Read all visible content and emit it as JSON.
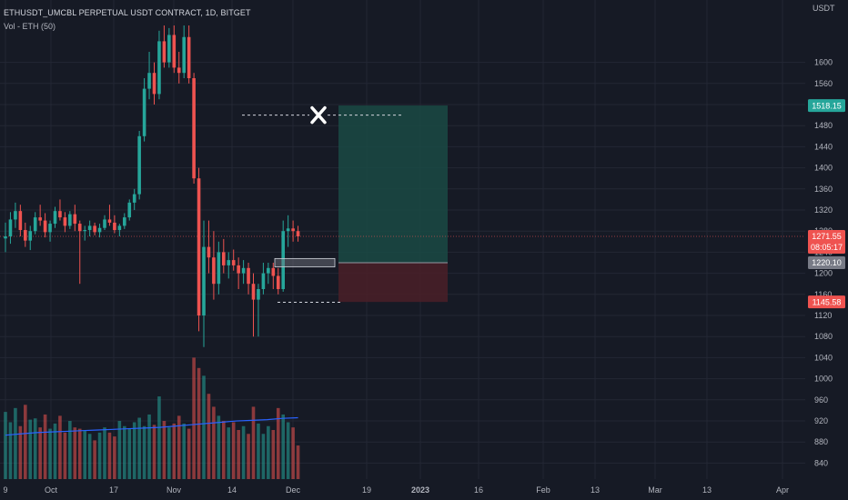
{
  "header": {
    "title": "ETHUSDT_UMCBL PERPETUAL USDT CONTRACT, 1D, BITGET",
    "indicator": "Vol - ETH (50)"
  },
  "colors": {
    "background": "#161a25",
    "up": "#26a69a",
    "down": "#ef5350",
    "grid": "#232734",
    "axis_text": "#b2b5be",
    "volume_ma": "#2962ff",
    "profit_zone": "#1a4a44",
    "loss_zone": "#4a2028"
  },
  "chart_data": {
    "type": "candlestick",
    "symbol": "ETHUSDT_UMCBL PERPETUAL USDT CONTRACT",
    "timeframe": "1D",
    "exchange": "BITGET",
    "y_axis": {
      "unit": "USDT",
      "range": [
        820,
        1670
      ],
      "ticks": [
        1600,
        1560,
        1520,
        1480,
        1440,
        1400,
        1360,
        1320,
        1280,
        1240,
        1200,
        1160,
        1120,
        1080,
        1040,
        1000,
        960,
        920,
        880,
        840
      ]
    },
    "x_axis": {
      "ticks": [
        "9",
        "Oct",
        "17",
        "Nov",
        "14",
        "Dec",
        "19",
        "2023",
        "16",
        "Feb",
        "13",
        "Mar",
        "13",
        "Apr"
      ]
    },
    "candles": [
      [
        1266,
        1296,
        1240,
        1270,
        104
      ],
      [
        1270,
        1316,
        1256,
        1302,
        88
      ],
      [
        1302,
        1334,
        1286,
        1318,
        110
      ],
      [
        1318,
        1330,
        1270,
        1282,
        82
      ],
      [
        1282,
        1296,
        1250,
        1262,
        115
      ],
      [
        1262,
        1290,
        1244,
        1280,
        92
      ],
      [
        1280,
        1316,
        1274,
        1306,
        94
      ],
      [
        1306,
        1330,
        1290,
        1300,
        80
      ],
      [
        1300,
        1314,
        1268,
        1278,
        100
      ],
      [
        1278,
        1300,
        1260,
        1294,
        78
      ],
      [
        1294,
        1326,
        1286,
        1318,
        86
      ],
      [
        1318,
        1340,
        1300,
        1306,
        98
      ],
      [
        1306,
        1316,
        1278,
        1290,
        72
      ],
      [
        1290,
        1318,
        1284,
        1312,
        90
      ],
      [
        1312,
        1330,
        1280,
        1294,
        80
      ],
      [
        1294,
        1300,
        1180,
        1280,
        78
      ],
      [
        1280,
        1290,
        1262,
        1282,
        75
      ],
      [
        1282,
        1300,
        1270,
        1290,
        70
      ],
      [
        1290,
        1296,
        1272,
        1278,
        60
      ],
      [
        1278,
        1294,
        1268,
        1286,
        72
      ],
      [
        1286,
        1310,
        1282,
        1302,
        80
      ],
      [
        1302,
        1330,
        1290,
        1296,
        72
      ],
      [
        1296,
        1310,
        1276,
        1282,
        66
      ],
      [
        1282,
        1294,
        1270,
        1290,
        90
      ],
      [
        1290,
        1314,
        1284,
        1306,
        82
      ],
      [
        1306,
        1340,
        1300,
        1334,
        78
      ],
      [
        1334,
        1360,
        1320,
        1350,
        88
      ],
      [
        1350,
        1470,
        1340,
        1460,
        95
      ],
      [
        1460,
        1570,
        1450,
        1550,
        82
      ],
      [
        1550,
        1620,
        1530,
        1580,
        100
      ],
      [
        1580,
        1600,
        1520,
        1540,
        84
      ],
      [
        1540,
        1660,
        1530,
        1640,
        128
      ],
      [
        1640,
        1670,
        1590,
        1600,
        90
      ],
      [
        1600,
        1665,
        1590,
        1652,
        80
      ],
      [
        1652,
        1670,
        1580,
        1590,
        86
      ],
      [
        1590,
        1620,
        1560,
        1580,
        98
      ],
      [
        1580,
        1670,
        1570,
        1648,
        86
      ],
      [
        1648,
        1670,
        1560,
        1570,
        78
      ],
      [
        1570,
        1580,
        1370,
        1380,
        188
      ],
      [
        1380,
        1400,
        1090,
        1120,
        172
      ],
      [
        1120,
        1300,
        1060,
        1250,
        160
      ],
      [
        1250,
        1300,
        1200,
        1230,
        132
      ],
      [
        1230,
        1280,
        1150,
        1180,
        112
      ],
      [
        1180,
        1260,
        1160,
        1240,
        98
      ],
      [
        1240,
        1265,
        1200,
        1215,
        90
      ],
      [
        1215,
        1240,
        1190,
        1225,
        80
      ],
      [
        1225,
        1245,
        1205,
        1215,
        88
      ],
      [
        1215,
        1230,
        1170,
        1200,
        76
      ],
      [
        1200,
        1225,
        1180,
        1210,
        82
      ],
      [
        1210,
        1220,
        1160,
        1180,
        70
      ],
      [
        1180,
        1200,
        1080,
        1150,
        112
      ],
      [
        1150,
        1180,
        1080,
        1170,
        86
      ],
      [
        1170,
        1220,
        1160,
        1200,
        70
      ],
      [
        1200,
        1220,
        1180,
        1210,
        82
      ],
      [
        1210,
        1220,
        1170,
        1195,
        76
      ],
      [
        1195,
        1210,
        1160,
        1170,
        110
      ],
      [
        1170,
        1300,
        1165,
        1280,
        100
      ],
      [
        1280,
        1310,
        1250,
        1285,
        88
      ],
      [
        1285,
        1300,
        1260,
        1280,
        80
      ],
      [
        1280,
        1290,
        1260,
        1270,
        52
      ]
    ],
    "volume_ma_values": [
      68,
      70,
      72,
      73,
      74,
      75,
      76,
      77,
      78,
      79,
      80,
      82,
      84,
      86,
      88,
      90,
      91,
      92,
      94,
      95
    ],
    "position": {
      "type": "long",
      "entry": 1220.1,
      "target": 1518.15,
      "stop": 1145.58
    },
    "annotations": {
      "cross_level": 1500,
      "stop_line_level": 1145
    },
    "price_tags": {
      "current_price": "1271.55",
      "countdown": "08:05:17",
      "target": "1518.15",
      "entry": "1220.10",
      "stop": "1145.58"
    }
  }
}
